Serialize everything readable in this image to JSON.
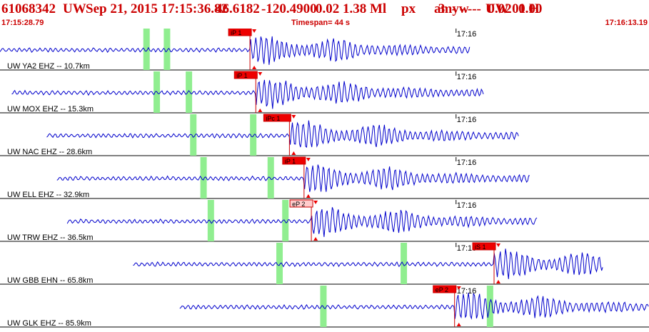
{
  "header": {
    "event_id": "61068342",
    "network": "UW",
    "datetime": "Sep 21, 2015 17:15:36.82",
    "lat": "46.6182",
    "lon": "-120.4900",
    "depth": "0.02",
    "magnitude": "1.38 Ml",
    "type": "px",
    "author": "amyw",
    "source": "UW 01 H",
    "count": "3",
    "dashes": "- - ---",
    "rms": "0.02",
    "tail": "0.00",
    "start_time": "17:15:28.79",
    "timespan": "Timespan=  44 s",
    "end_time": "17:16:13.19"
  },
  "colors": {
    "header_text": "#cc0000",
    "trace": "#0000cc",
    "pick_box": "#ee0000",
    "pick_line": "#cc0000",
    "green_marker": "#90ee90",
    "axis": "#000000"
  },
  "time_tick_label": "17:16",
  "traces": [
    {
      "label": "UW YA2 EHZ -- 10.7km",
      "picks": [
        {
          "label": "iP 1",
          "time": 17.1
        }
      ]
    },
    {
      "label": "UW MOX EHZ -- 15.3km",
      "picks": [
        {
          "label": "iP 1",
          "time": 17.5
        }
      ]
    },
    {
      "label": "UW NAC EHZ -- 28.6km",
      "picks": [
        {
          "label": "iPc 1",
          "time": 19.8
        }
      ]
    },
    {
      "label": "UW ELL EHZ -- 32.9km",
      "picks": [
        {
          "label": "iP 1",
          "time": 20.8
        }
      ]
    },
    {
      "label": "UW TRW EHZ -- 36.5km",
      "picks": [
        {
          "label": "eP 2",
          "time": 21.3
        }
      ]
    },
    {
      "label": "UW GBB EHN -- 65.8km",
      "picks": [
        {
          "label": "iS 1",
          "time": 33.8
        }
      ]
    },
    {
      "label": "UW GLK EHZ -- 85.9km",
      "picks": [
        {
          "label": "eP 2",
          "time": 31.1
        }
      ]
    }
  ]
}
